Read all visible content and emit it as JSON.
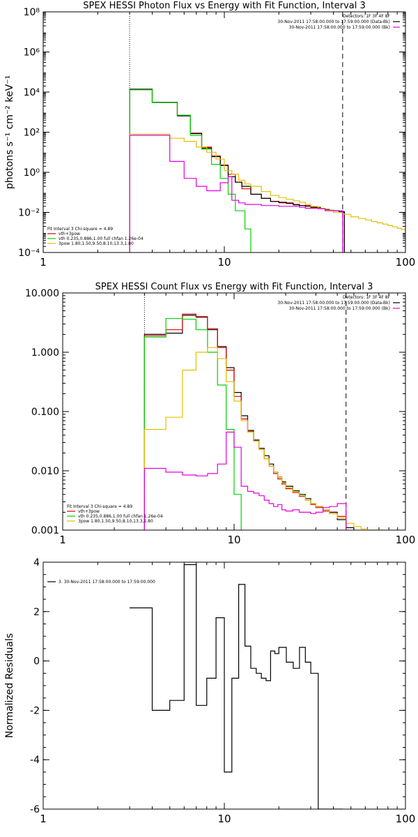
{
  "colors": {
    "black": "#000000",
    "red": "#e00000",
    "green": "#00d000",
    "yellow": "#e0c000",
    "magenta": "#e000e0"
  },
  "chart_data": [
    {
      "type": "line",
      "title": "SPEX HESSI Photon Flux vs Energy with Fit Function, Interval 3",
      "xlabel": "",
      "ylabel": "photons s⁻¹ cm⁻² keV⁻¹",
      "xscale": "log",
      "yscale": "log",
      "xlim": [
        1,
        100
      ],
      "ylim": [
        0.0001,
        100000000
      ],
      "xticks": [
        {
          "v": 1,
          "t": "1"
        },
        {
          "v": 10,
          "t": "10"
        },
        {
          "v": 100,
          "t": "100"
        }
      ],
      "yticks": [
        {
          "v": 0.0001,
          "t": "10⁻⁴"
        },
        {
          "v": 0.01,
          "t": "10⁻²"
        },
        {
          "v": 1,
          "t": "10⁰"
        },
        {
          "v": 100,
          "t": "10²"
        },
        {
          "v": 10000,
          "t": "10⁴"
        },
        {
          "v": 1000000,
          "t": "10⁶"
        },
        {
          "v": 100000000,
          "t": "10⁸"
        }
      ],
      "vlines": [
        {
          "x": 3,
          "style": "dotted"
        },
        {
          "x": 45,
          "style": "dashed"
        }
      ],
      "legend_top_right": [
        "Detectors: 1F 3F 4F 8F",
        "30-Nov-2011 17:58:00.000 to 17:59:00.000 (Data-Bk)",
        "30-Nov-2011 17:58:00.000 to 17:59:00.000 (Bk)"
      ],
      "legend_bottom_left": [
        "Fit Interval 3   Chi-square = 4.89",
        "vth+3pow",
        "vth 0.235,0.886,1.00  full chfan 1.26e-04",
        "3pow 1.80,1.50,9.50,8.10,13.3,1.80"
      ],
      "grid": false,
      "series": [
        {
          "name": "vth+3pow",
          "color": "red",
          "edges": [
            3,
            3.5,
            4,
            4.5,
            5,
            5.5,
            6,
            6.5,
            7,
            7.5,
            8,
            8.5,
            9,
            9.5,
            10,
            10.5,
            11,
            11.5,
            12,
            12.5,
            13,
            14,
            15,
            16,
            17,
            18,
            19,
            20,
            22,
            24,
            26,
            28,
            30,
            32,
            34,
            36,
            38,
            40,
            43,
            46
          ],
          "values": [
            13000,
            13000,
            3000,
            3000,
            3000,
            700,
            700,
            90,
            90,
            18,
            18,
            6.5,
            6.5,
            2.3,
            2.3,
            0.8,
            0.8,
            0.32,
            0.32,
            0.15,
            0.15,
            0.08,
            0.08,
            0.05,
            0.05,
            0.035,
            0.035,
            0.03,
            0.03,
            0.025,
            0.022,
            0.022,
            0.018,
            0.018,
            0.015,
            0.014,
            0.013,
            0.012,
            0.01
          ]
        },
        {
          "name": "",
          "color": "black",
          "edges": [
            3,
            3.5,
            4,
            4.5,
            5,
            5.5,
            6,
            6.5,
            7,
            7.5,
            8,
            8.5,
            9,
            9.5,
            10,
            10.5,
            11,
            11.5,
            12,
            12.5,
            13,
            14,
            15,
            16,
            17,
            18,
            19,
            20,
            22,
            24,
            26,
            28,
            30,
            32,
            34,
            36,
            38,
            40,
            43,
            46
          ],
          "values": [
            14000,
            14000,
            3100,
            3100,
            3100,
            650,
            650,
            85,
            85,
            16,
            16,
            6,
            6,
            2.2,
            2.2,
            0.6,
            0.6,
            0.32,
            0.32,
            0.2,
            0.2,
            0.08,
            0.08,
            0.05,
            0.05,
            0.035,
            0.035,
            0.032,
            0.028,
            0.024,
            0.022,
            0.02,
            0.018,
            0.017,
            0.015,
            0.014,
            0.013,
            0.012,
            0.011
          ]
        },
        {
          "name": "",
          "color": "green",
          "edges": [
            3,
            4,
            5,
            5.5,
            6,
            6.5,
            7,
            7.5,
            8,
            8.5,
            9,
            9.5,
            10,
            10.5,
            11,
            11.5,
            12,
            13,
            14
          ],
          "values": [
            13000,
            3000,
            3000,
            700,
            700,
            70,
            70,
            14,
            14,
            2.5,
            2.5,
            0.5,
            0.5,
            0.08,
            0.08,
            0.012,
            0.012,
            0.0015,
            0.0001
          ]
        },
        {
          "name": "",
          "color": "yellow",
          "edges": [
            3,
            4,
            5,
            5.5,
            6,
            6.5,
            7,
            7.5,
            8,
            8.5,
            9,
            9.5,
            10,
            11,
            12,
            13,
            14,
            16,
            18,
            20,
            22,
            24,
            26,
            28,
            30,
            33,
            36,
            40,
            45,
            50,
            55,
            60,
            65,
            70,
            75,
            80,
            85,
            90,
            95,
            100
          ],
          "values": [
            80,
            80,
            50,
            50,
            35,
            35,
            18,
            18,
            10,
            10,
            4.5,
            4.5,
            1.2,
            0.8,
            0.4,
            0.26,
            0.2,
            0.11,
            0.07,
            0.055,
            0.045,
            0.038,
            0.032,
            0.025,
            0.02,
            0.016,
            0.013,
            0.01,
            0.008,
            0.006,
            0.005,
            0.0042,
            0.0035,
            0.003,
            0.0026,
            0.0022,
            0.0019,
            0.0016,
            0.0014
          ]
        },
        {
          "name": "",
          "color": "magenta",
          "edges": [
            3,
            4,
            5,
            5.5,
            6,
            6.5,
            7,
            7.5,
            8,
            8.5,
            9,
            9.5,
            10,
            10.5,
            11,
            12,
            13,
            14,
            16,
            18,
            20,
            22,
            24,
            26,
            28,
            30,
            33,
            36,
            40,
            45
          ],
          "values": [
            70,
            70,
            3.5,
            3.5,
            0.5,
            0.5,
            0.2,
            0.2,
            0.12,
            0.12,
            0.12,
            0.3,
            0.3,
            0.6,
            0.04,
            0.03,
            0.025,
            0.025,
            0.022,
            0.022,
            0.02,
            0.02,
            0.02,
            0.018,
            0.016,
            0.016,
            0.015,
            0.012,
            0.012
          ]
        }
      ]
    },
    {
      "type": "line",
      "title": "SPEX HESSI Count Flux vs Energy with Fit Function, Interval 3",
      "xlabel": "",
      "ylabel": "",
      "xscale": "log",
      "yscale": "log",
      "xlim": [
        1,
        100
      ],
      "ylim": [
        0.001,
        10
      ],
      "xticks": [
        {
          "v": 1,
          "t": "1"
        },
        {
          "v": 10,
          "t": "10"
        },
        {
          "v": 100,
          "t": "100"
        }
      ],
      "yticks": [
        {
          "v": 0.001,
          "t": "0.001"
        },
        {
          "v": 0.01,
          "t": "0.010"
        },
        {
          "v": 0.1,
          "t": "0.100"
        },
        {
          "v": 1,
          "t": "1.000"
        },
        {
          "v": 10,
          "t": "10.000"
        }
      ],
      "vlines": [
        {
          "x": 3,
          "style": "dotted"
        },
        {
          "x": 45,
          "style": "dashed"
        }
      ],
      "legend_top_right": [
        "Detectors: 1F 3F 4F 8F",
        "30-Nov-2011 17:58:00.000 to 17:59:00.000 (Data-Bk)",
        "30-Nov-2011 17:58:00.000 to 17:59:00.000 (Bk)"
      ],
      "legend_bottom_left": [
        "Fit Interval 3   Chi-square = 4.89",
        "vth+3pow",
        "vth 0.235,0.886,1.00  full chfan 1.26e-04",
        "3pow 1.80,1.50,9.50,8.10,13.3,1.80"
      ],
      "grid": false,
      "series": [
        {
          "name": "",
          "color": "black",
          "edges": [
            3,
            4,
            5,
            6,
            7,
            8,
            9,
            10,
            11,
            12,
            13,
            14,
            15,
            16,
            17,
            18,
            19,
            20,
            22,
            24,
            26,
            28,
            30,
            33,
            36,
            40,
            45,
            50
          ],
          "values": [
            2,
            2.1,
            4.2,
            3.9,
            2.4,
            1.25,
            0.55,
            0.21,
            0.085,
            0.048,
            0.033,
            0.024,
            0.018,
            0.013,
            0.0095,
            0.0078,
            0.0065,
            0.0055,
            0.0046,
            0.004,
            0.0034,
            0.0028,
            0.0025,
            0.0022,
            0.002,
            0.0015,
            0.0011
          ]
        },
        {
          "name": "vth+3pow",
          "color": "red",
          "edges": [
            3,
            4,
            5,
            6,
            7,
            8,
            9,
            10,
            11,
            12,
            13,
            14,
            15,
            16,
            17,
            18,
            19,
            20,
            22,
            24,
            26,
            28,
            30,
            33,
            36,
            40,
            45
          ],
          "values": [
            1.9,
            2.4,
            4.4,
            4.0,
            2.5,
            1.2,
            0.5,
            0.18,
            0.075,
            0.046,
            0.032,
            0.023,
            0.016,
            0.012,
            0.009,
            0.0073,
            0.006,
            0.005,
            0.0043,
            0.0037,
            0.0032,
            0.0027,
            0.0024,
            0.0021,
            0.0019,
            0.0017
          ]
        },
        {
          "name": "",
          "color": "green",
          "edges": [
            3,
            4,
            5,
            6,
            7,
            8,
            9,
            10,
            11
          ],
          "values": [
            1.8,
            3.7,
            3.6,
            2.4,
            1.0,
            0.28,
            0.05,
            0.004
          ]
        },
        {
          "name": "",
          "color": "yellow",
          "edges": [
            3,
            4,
            5,
            6,
            7,
            8,
            9,
            10,
            11,
            12,
            13,
            14,
            15,
            16,
            17,
            18,
            19,
            20,
            22,
            24,
            26,
            28,
            30,
            33,
            36,
            40,
            45,
            50,
            55,
            60,
            65,
            70,
            75
          ],
          "values": [
            0.05,
            0.08,
            0.5,
            1.0,
            1.2,
            0.78,
            0.32,
            0.15,
            0.07,
            0.045,
            0.032,
            0.023,
            0.016,
            0.012,
            0.0095,
            0.0077,
            0.0063,
            0.0052,
            0.0044,
            0.0038,
            0.0032,
            0.0028,
            0.0025,
            0.0022,
            0.0019,
            0.0016,
            0.0013,
            0.00115,
            0.00105,
            0.00095,
            0.0009,
            0.0008
          ]
        },
        {
          "name": "",
          "color": "magenta",
          "edges": [
            3,
            4,
            5,
            6,
            7,
            8,
            9,
            10,
            11,
            12,
            13,
            14,
            15,
            16,
            17,
            18,
            19,
            20,
            22,
            24,
            26,
            28,
            30,
            33,
            36,
            40,
            45
          ],
          "values": [
            0.011,
            0.0095,
            0.0085,
            0.0082,
            0.009,
            0.013,
            0.045,
            0.025,
            0.0055,
            0.0045,
            0.0042,
            0.0038,
            0.0032,
            0.0028,
            0.0025,
            0.0027,
            0.0022,
            0.0021,
            0.0022,
            0.002,
            0.002,
            0.0019,
            0.002,
            0.0024,
            0.0025,
            0.0028
          ]
        }
      ]
    },
    {
      "type": "line",
      "title": "",
      "xlabel": "",
      "ylabel": "Normalized Residuals",
      "xscale": "log",
      "yscale": "linear",
      "xlim": [
        1,
        100
      ],
      "ylim": [
        -6,
        4
      ],
      "xticks": [
        {
          "v": 1,
          "t": "1"
        },
        {
          "v": 10,
          "t": "10"
        },
        {
          "v": 100,
          "t": "100"
        }
      ],
      "yticks": [
        {
          "v": -6,
          "t": "-6"
        },
        {
          "v": -4,
          "t": "-4"
        },
        {
          "v": -2,
          "t": "-2"
        },
        {
          "v": 0,
          "t": "0"
        },
        {
          "v": 2,
          "t": "2"
        },
        {
          "v": 4,
          "t": "4"
        }
      ],
      "legend_top_left": [
        "3. 30-Nov-2011 17:58:00.000 to 17:59:00.000"
      ],
      "grid": false,
      "series": [
        {
          "name": "3. 30-Nov-2011 17:58:00.000 to 17:59:00.000",
          "color": "black",
          "edges": [
            3,
            4,
            5,
            6,
            7,
            8,
            9,
            10,
            11,
            12,
            13,
            14,
            15,
            16,
            17,
            18,
            19,
            20,
            22,
            24,
            26,
            28,
            30,
            33,
            36,
            40,
            45
          ],
          "values": [
            2.15,
            -2.0,
            -1.6,
            3.9,
            -1.8,
            -0.7,
            1.75,
            -4.5,
            -0.7,
            3.1,
            0.6,
            -0.3,
            -0.5,
            -0.7,
            -0.8,
            0.4,
            0.3,
            0.55,
            -0.05,
            -0.3,
            0.55,
            -0.05,
            -0.5,
            -6,
            -6,
            -6
          ]
        }
      ]
    }
  ]
}
